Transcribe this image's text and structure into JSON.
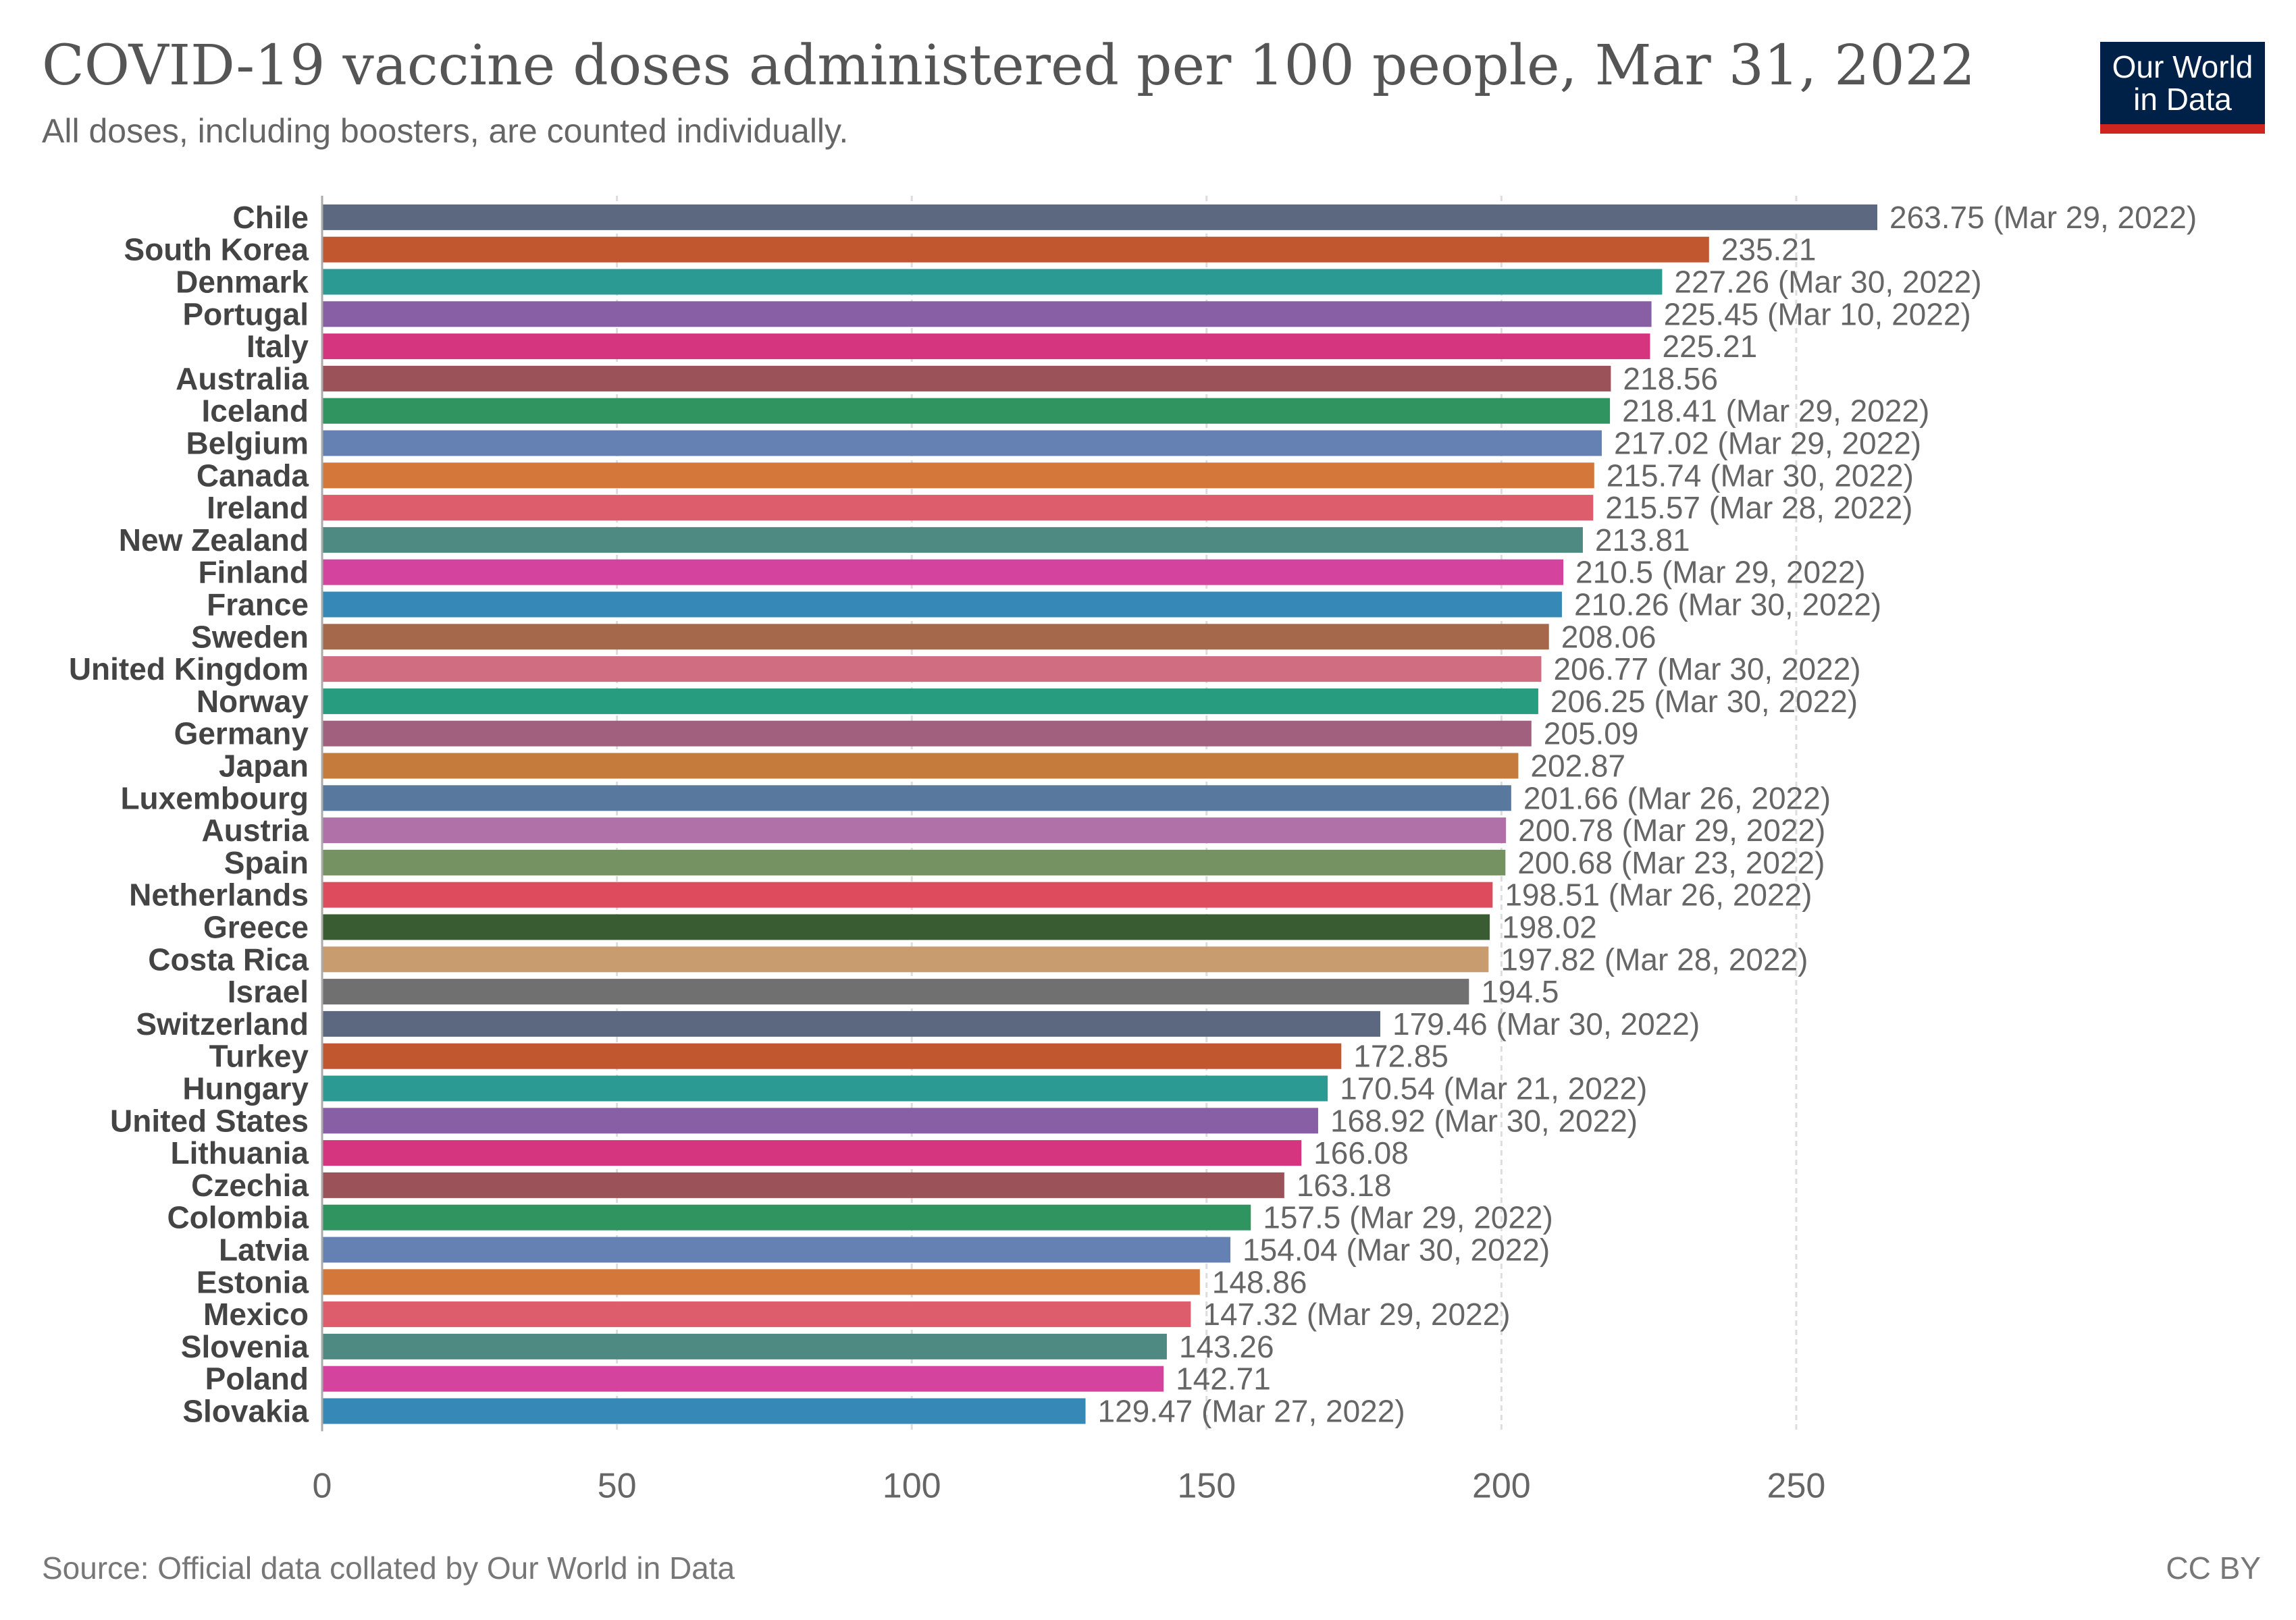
{
  "header": {
    "title": "COVID-19 vaccine doses administered per 100 people, Mar 31, 2022",
    "subtitle": "All doses, including boosters, are counted individually."
  },
  "logo": {
    "line1": "Our World",
    "line2": "in Data"
  },
  "footer": {
    "source": "Source: Official data collated by Our World in Data",
    "license": "CC BY"
  },
  "chart_data": {
    "type": "bar",
    "orientation": "horizontal",
    "title": "COVID-19 vaccine doses administered per 100 people, Mar 31, 2022",
    "subtitle": "All doses, including boosters, are counted individually.",
    "xlabel": "",
    "ylabel": "",
    "xlim": [
      0,
      263.75
    ],
    "xticks": [
      0,
      50,
      100,
      150,
      200,
      250
    ],
    "grid": "vertical-dashed",
    "categories": [
      "Chile",
      "South Korea",
      "Denmark",
      "Portugal",
      "Italy",
      "Australia",
      "Iceland",
      "Belgium",
      "Canada",
      "Ireland",
      "New Zealand",
      "Finland",
      "France",
      "Sweden",
      "United Kingdom",
      "Norway",
      "Germany",
      "Japan",
      "Luxembourg",
      "Austria",
      "Spain",
      "Netherlands",
      "Greece",
      "Costa Rica",
      "Israel",
      "Switzerland",
      "Turkey",
      "Hungary",
      "United States",
      "Lithuania",
      "Czechia",
      "Colombia",
      "Latvia",
      "Estonia",
      "Mexico",
      "Slovenia",
      "Poland",
      "Slovakia"
    ],
    "values": [
      263.75,
      235.21,
      227.26,
      225.45,
      225.21,
      218.56,
      218.41,
      217.02,
      215.74,
      215.57,
      213.81,
      210.5,
      210.26,
      208.06,
      206.77,
      206.25,
      205.09,
      202.87,
      201.66,
      200.78,
      200.68,
      198.51,
      198.02,
      197.82,
      194.5,
      179.46,
      172.85,
      170.54,
      168.92,
      166.08,
      163.18,
      157.5,
      154.04,
      148.86,
      147.32,
      143.26,
      142.71,
      129.47
    ],
    "labels": [
      "263.75 (Mar 29, 2022)",
      "235.21",
      "227.26 (Mar 30, 2022)",
      "225.45 (Mar 10, 2022)",
      "225.21",
      "218.56",
      "218.41 (Mar 29, 2022)",
      "217.02 (Mar 29, 2022)",
      "215.74 (Mar 30, 2022)",
      "215.57 (Mar 28, 2022)",
      "213.81",
      "210.5 (Mar 29, 2022)",
      "210.26 (Mar 30, 2022)",
      "208.06",
      "206.77 (Mar 30, 2022)",
      "206.25 (Mar 30, 2022)",
      "205.09",
      "202.87",
      "201.66 (Mar 26, 2022)",
      "200.78 (Mar 29, 2022)",
      "200.68 (Mar 23, 2022)",
      "198.51 (Mar 26, 2022)",
      "198.02",
      "197.82 (Mar 28, 2022)",
      "194.5",
      "179.46 (Mar 30, 2022)",
      "172.85",
      "170.54 (Mar 21, 2022)",
      "168.92 (Mar 30, 2022)",
      "166.08",
      "163.18",
      "157.5 (Mar 29, 2022)",
      "154.04 (Mar 30, 2022)",
      "148.86",
      "147.32 (Mar 29, 2022)",
      "143.26",
      "142.71",
      "129.47 (Mar 27, 2022)"
    ],
    "colors": [
      "#5c6880",
      "#c0572f",
      "#2a9a92",
      "#885ea5",
      "#d4357e",
      "#9c5259",
      "#2f9460",
      "#6580b3",
      "#d4773b",
      "#dd5d6d",
      "#4e8a82",
      "#d4449e",
      "#3689b6",
      "#a6684b",
      "#d06d80",
      "#279c7f",
      "#a0607e",
      "#c47b3b",
      "#58799d",
      "#b070a8",
      "#749262",
      "#de4b5d",
      "#3a5c32",
      "#c89c6f",
      "#707070",
      "#5c6880",
      "#c0572f",
      "#2a9a92",
      "#885ea5",
      "#d4357e",
      "#9c5259",
      "#2f9460",
      "#6580b3",
      "#d4773b",
      "#dd5d6d",
      "#4e8a82",
      "#d4449e",
      "#3689b6"
    ]
  }
}
